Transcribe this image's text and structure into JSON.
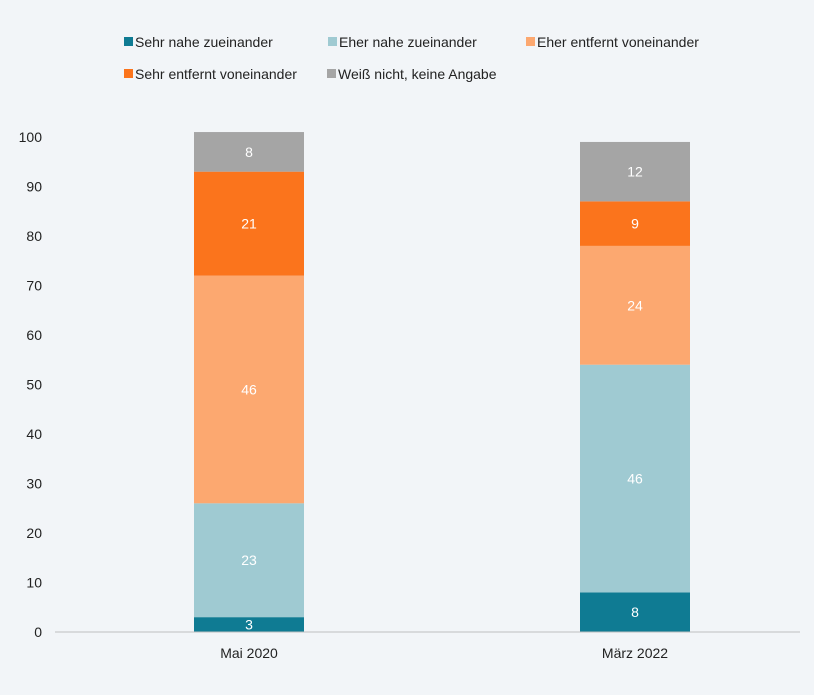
{
  "chart_data": {
    "type": "bar",
    "stacked": true,
    "categories": [
      "Mai 2020",
      "März 2022"
    ],
    "series": [
      {
        "name": "Sehr nahe zueinander",
        "values": [
          3,
          8
        ],
        "color": "#0f7b93"
      },
      {
        "name": "Eher nahe zueinander",
        "values": [
          23,
          46
        ],
        "color": "#9fcad2"
      },
      {
        "name": "Eher entfernt voneinander",
        "values": [
          46,
          24
        ],
        "color": "#fca870"
      },
      {
        "name": "Sehr entfernt voneinander",
        "values": [
          21,
          9
        ],
        "color": "#fb741c"
      },
      {
        "name": "Weiß nicht, keine Angabe",
        "values": [
          8,
          12
        ],
        "color": "#a5a5a5"
      }
    ],
    "yticks": [
      0,
      10,
      20,
      30,
      40,
      50,
      60,
      70,
      80,
      90,
      100
    ],
    "ylim": [
      0,
      100
    ],
    "grid": false,
    "legend_position": "top"
  }
}
